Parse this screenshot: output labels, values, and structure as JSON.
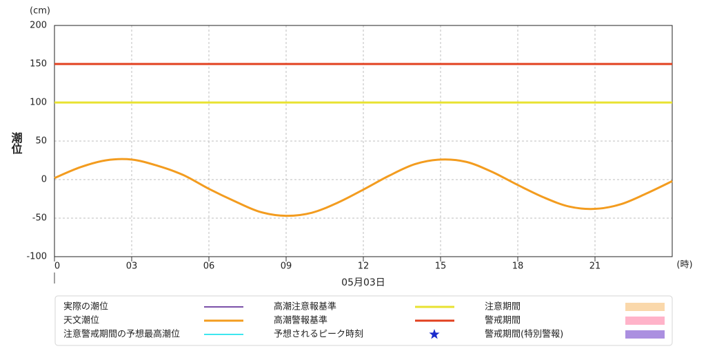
{
  "chart_data": {
    "type": "line",
    "y_unit": "(cm)",
    "y_label": "潮位",
    "x_unit": "(時)",
    "x_date": "05月03日",
    "xlim": [
      0,
      24
    ],
    "ylim": [
      -100,
      200
    ],
    "xticks": [
      0,
      {
        "value": 3,
        "label": "03"
      },
      {
        "value": 6,
        "label": "06"
      },
      {
        "value": 9,
        "label": "09"
      },
      12,
      15,
      18,
      21
    ],
    "yticks": [
      -100,
      -50,
      0,
      50,
      100,
      150,
      200
    ],
    "grid": true,
    "series": [
      {
        "name": "実際の潮位",
        "color": "#7a4fa8",
        "symbol": "line"
      },
      {
        "name": "天文潮位",
        "color": "#f39c1f",
        "symbol": "line",
        "x": [
          0,
          1,
          2,
          3,
          4,
          5,
          6,
          7,
          8,
          9,
          10,
          11,
          12,
          13,
          14,
          15,
          16,
          17,
          18,
          19,
          20,
          21,
          22,
          23,
          24
        ],
        "values": [
          2,
          16,
          25,
          26,
          18,
          6,
          -12,
          -28,
          -42,
          -47,
          -43,
          -30,
          -13,
          5,
          20,
          26,
          23,
          10,
          -7,
          -23,
          -35,
          -38,
          -32,
          -18,
          -2
        ]
      },
      {
        "name": "注意警戒期間の予想最高潮位",
        "color": "#3ee6ef",
        "symbol": "line"
      },
      {
        "name": "高潮注意報基準",
        "color": "#e8e230",
        "symbol": "line",
        "x": [
          0,
          24
        ],
        "values": [
          100,
          100
        ]
      },
      {
        "name": "高潮警報基準",
        "color": "#e2401f",
        "symbol": "line",
        "x": [
          0,
          24
        ],
        "values": [
          150,
          150
        ]
      },
      {
        "name": "予想されるピーク時刻",
        "color": "#1a2bcc",
        "symbol": "star"
      },
      {
        "name": "注意期間",
        "color": "#fad8ab",
        "symbol": "rect"
      },
      {
        "name": "警戒期間",
        "color": "#ffb3c9",
        "symbol": "rect"
      },
      {
        "name": "警戒期間(特別警報)",
        "color": "#ab8fe0",
        "symbol": "rect"
      }
    ]
  }
}
